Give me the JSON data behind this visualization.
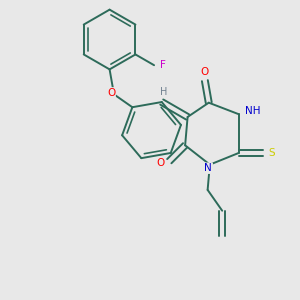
{
  "background_color": "#e8e8e8",
  "bond_color": "#2d6b5a",
  "atom_colors": {
    "O": "#ff0000",
    "N": "#0000cd",
    "S": "#cccc00",
    "F": "#cc00cc",
    "H": "#708090",
    "C": "#2d6b5a"
  },
  "figsize": [
    3.0,
    3.0
  ],
  "dpi": 100,
  "xlim": [
    0,
    10
  ],
  "ylim": [
    0,
    10
  ]
}
